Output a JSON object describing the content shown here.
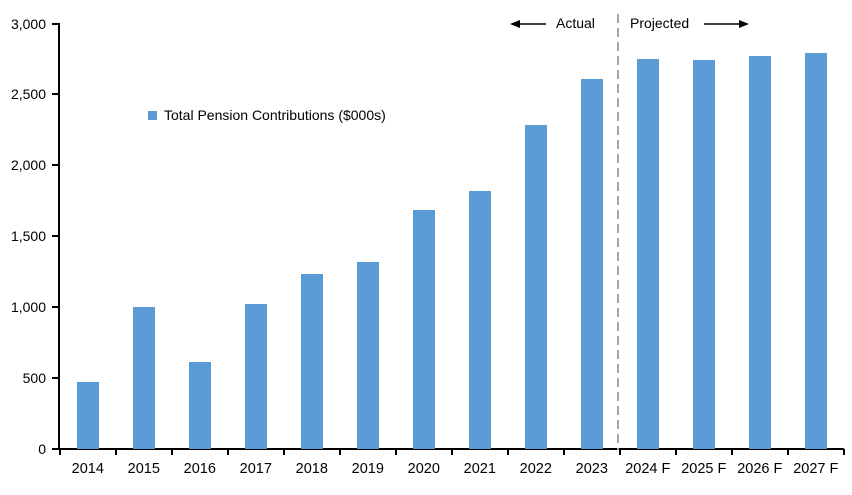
{
  "chart_data": {
    "type": "bar",
    "title": "",
    "legend": "Total Pension Contributions ($000s)",
    "categories": [
      "2014",
      "2015",
      "2016",
      "2017",
      "2018",
      "2019",
      "2020",
      "2021",
      "2022",
      "2023",
      "2024 F",
      "2025 F",
      "2026 F",
      "2027 F"
    ],
    "values": [
      470,
      1000,
      610,
      1025,
      1235,
      1315,
      1685,
      1820,
      2285,
      2610,
      2750,
      2740,
      2770,
      2790
    ],
    "xlabel": "",
    "ylabel": "",
    "ylim": [
      0,
      3000
    ],
    "ytick_interval": 500,
    "ytick_labels": [
      "0",
      "500",
      "1,000",
      "1,500",
      "2,000",
      "2,500",
      "3,000"
    ],
    "grid": false,
    "legend_position": "inside-upper-left",
    "bar_color": "#5B9BD5",
    "axis_color": "#000000",
    "divider_color": "#A6A6A6",
    "divider": {
      "style": "dashed",
      "between": [
        "2023",
        "2024 F"
      ]
    },
    "annotations": {
      "actual": "Actual",
      "projected": "Projected"
    }
  }
}
